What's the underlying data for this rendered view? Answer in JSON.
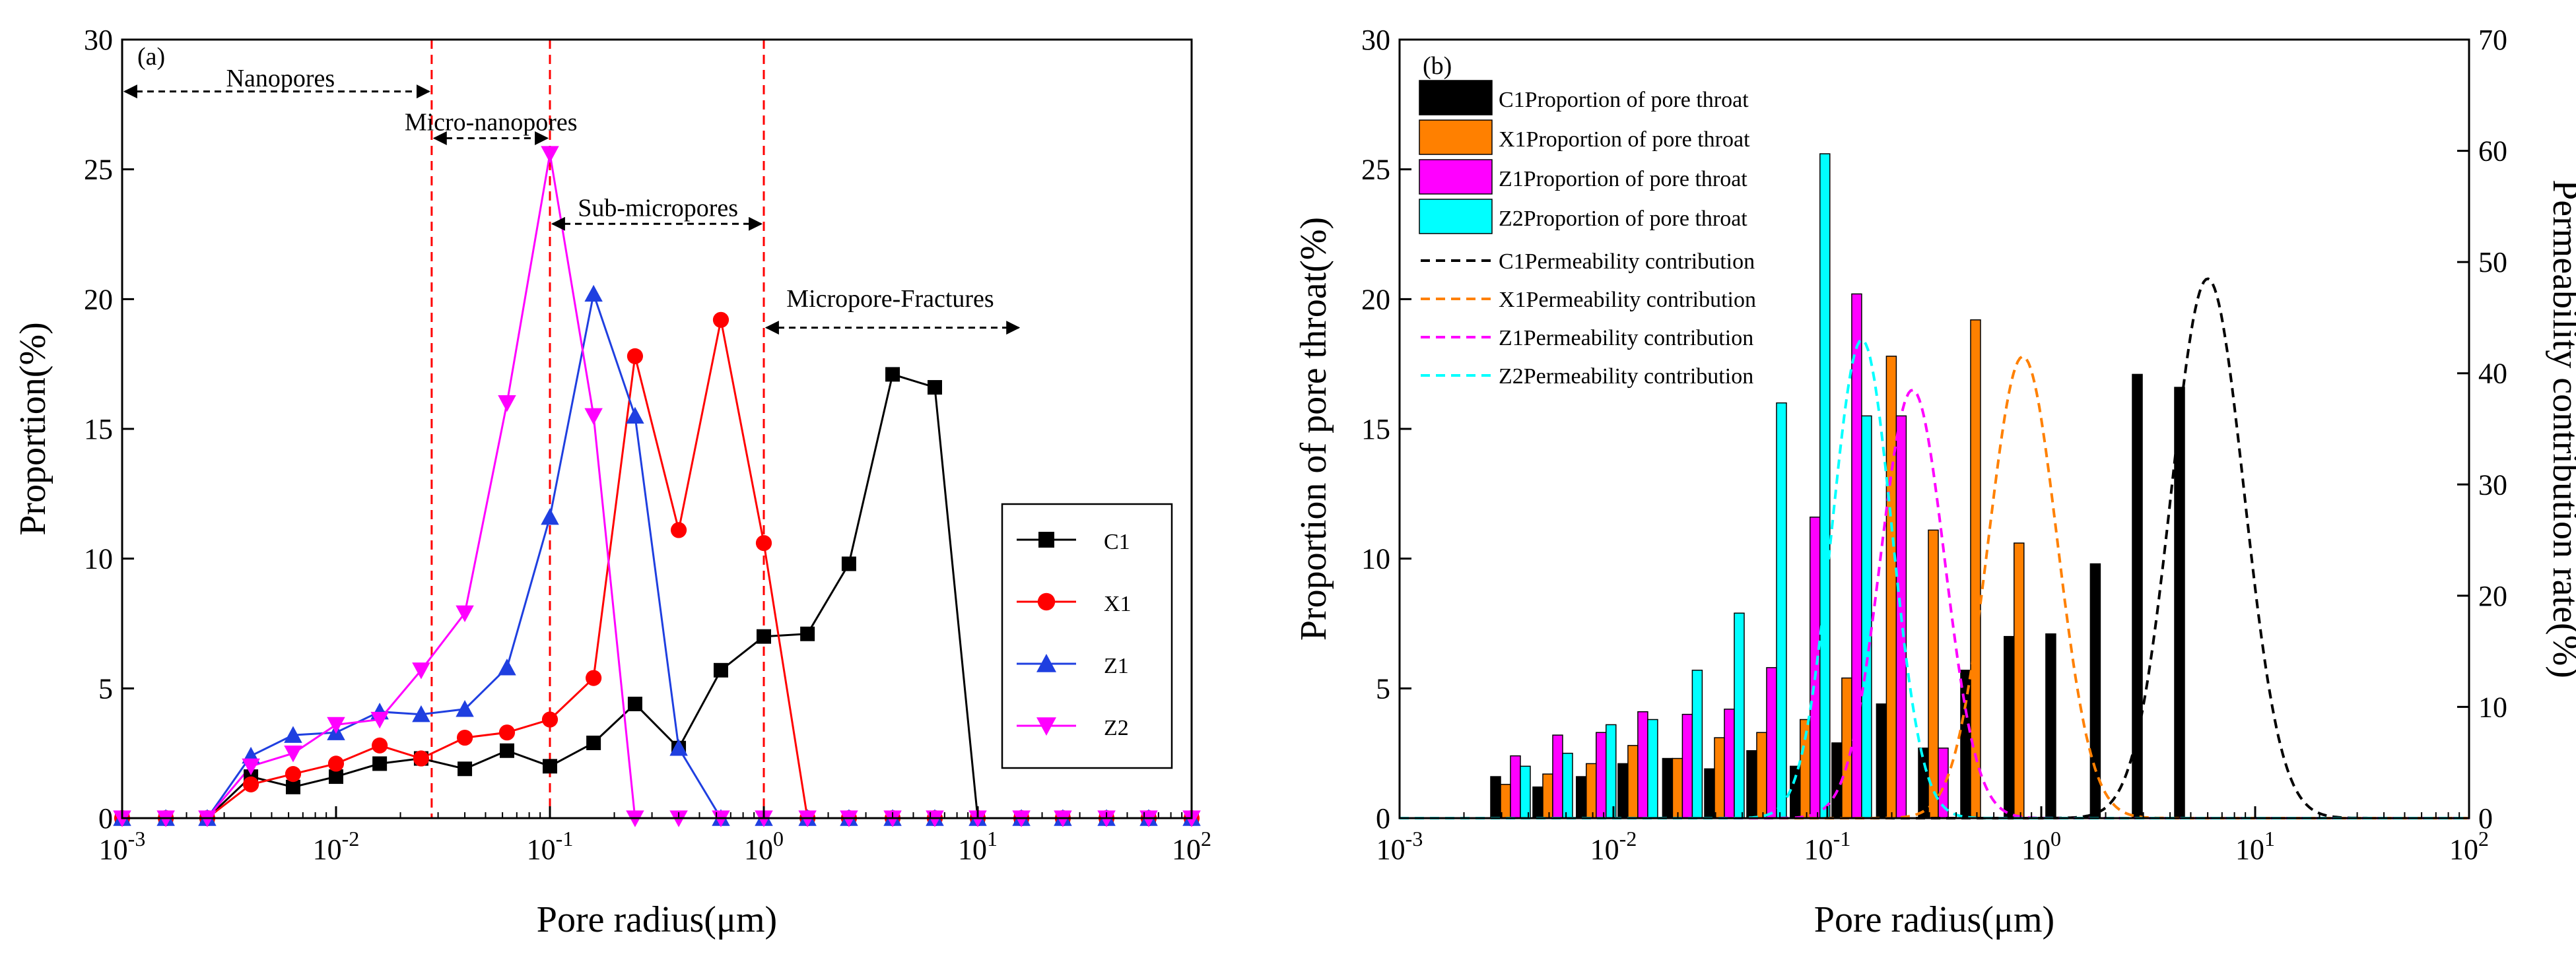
{
  "colors": {
    "C1": "#000000",
    "X1": "#ff0000",
    "Z1": "#1f3fe0",
    "Z2": "#ff00ff",
    "bar_C1": "#000000",
    "bar_X1": "#ff8000",
    "bar_Z1": "#ff00ff",
    "bar_Z2": "#00ffff",
    "divider": "#ff0000",
    "arrow": "#000000"
  },
  "chart_data": [
    {
      "type": "line",
      "panel_label": "(a)",
      "xlabel": "Pore radius(μm)",
      "ylabel": "Proportion(%)",
      "xscale": "log",
      "xlim": [
        0.001,
        100
      ],
      "ylim": [
        0,
        30
      ],
      "yticks": [
        0,
        5,
        10,
        15,
        20,
        25,
        30
      ],
      "xticks": [
        {
          "value": 0.001,
          "base": "10",
          "exp": "-3"
        },
        {
          "value": 0.01,
          "base": "10",
          "exp": "-2"
        },
        {
          "value": 0.1,
          "base": "10",
          "exp": "-1"
        },
        {
          "value": 1,
          "base": "10",
          "exp": "0"
        },
        {
          "value": 10,
          "base": "10",
          "exp": "1"
        },
        {
          "value": 100,
          "base": "10",
          "exp": "2"
        }
      ],
      "legend_position": "right",
      "x": [
        0.001,
        0.0016,
        0.0025,
        0.004,
        0.0063,
        0.01,
        0.016,
        0.025,
        0.04,
        0.063,
        0.1,
        0.16,
        0.25,
        0.4,
        0.63,
        1.0,
        1.6,
        2.5,
        4.0,
        6.3,
        10,
        16,
        25,
        40,
        63,
        100
      ],
      "series": [
        {
          "name": "C1",
          "color_key": "C1",
          "marker": "square",
          "values": [
            0,
            0,
            0,
            1.6,
            1.2,
            1.6,
            2.1,
            2.3,
            1.9,
            2.6,
            2.0,
            2.9,
            4.4,
            2.7,
            5.7,
            7.0,
            7.1,
            9.8,
            17.1,
            16.6,
            0,
            0,
            0,
            0,
            0,
            0
          ]
        },
        {
          "name": "X1",
          "color_key": "X1",
          "marker": "circle",
          "values": [
            0,
            0,
            0,
            1.3,
            1.7,
            2.1,
            2.8,
            2.3,
            3.1,
            3.3,
            3.8,
            5.4,
            17.8,
            11.1,
            19.2,
            10.6,
            0,
            0,
            0,
            0,
            0,
            0,
            0,
            0,
            0,
            0
          ]
        },
        {
          "name": "Z1",
          "color_key": "Z1",
          "marker": "triangle-up",
          "values": [
            0,
            0,
            0,
            2.4,
            3.2,
            3.3,
            4.1,
            4.0,
            4.2,
            5.8,
            11.6,
            20.2,
            15.5,
            2.7,
            0,
            0,
            0,
            0,
            0,
            0,
            0,
            0,
            0,
            0,
            0,
            0
          ]
        },
        {
          "name": "Z2",
          "color_key": "Z2",
          "marker": "triangle-down",
          "values": [
            0,
            0,
            0,
            2.0,
            2.5,
            3.6,
            3.8,
            5.7,
            7.9,
            16.0,
            25.6,
            15.5,
            0,
            0,
            0,
            0,
            0,
            0,
            0,
            0,
            0,
            0,
            0,
            0,
            0,
            0
          ]
        }
      ],
      "divider_lines_x": [
        0.028,
        0.1,
        1.0
      ],
      "annotations": [
        {
          "text": "Nanopores",
          "label_x": 0.0055,
          "label_y": 28.2,
          "arrow_x1": 0.001,
          "arrow_x2": 0.028,
          "arrow_y": 28.0
        },
        {
          "text": "Micro-nanopores",
          "label_x": 0.053,
          "label_y": 26.5,
          "arrow_x1": 0.028,
          "arrow_x2": 0.1,
          "arrow_y": 26.2
        },
        {
          "text": "Sub-micropores",
          "label_x": 0.32,
          "label_y": 23.2,
          "arrow_x1": 0.1,
          "arrow_x2": 1.0,
          "arrow_y": 22.9
        },
        {
          "text": "Micropore-Fractures",
          "label_x": 3.9,
          "label_y": 19.7,
          "arrow_x1": 1.0,
          "arrow_x2": 16.0,
          "arrow_y": 18.9
        }
      ]
    },
    {
      "type": "bar",
      "panel_label": "(b)",
      "xlabel": "Pore radius(μm)",
      "ylabel": "Proportion of pore throat(%)",
      "y2label": "Permeability contribution rate(%)",
      "xscale": "log",
      "xlim": [
        0.001,
        100
      ],
      "ylim": [
        0,
        30
      ],
      "y2lim": [
        0,
        70
      ],
      "yticks": [
        0,
        5,
        10,
        15,
        20,
        25,
        30
      ],
      "y2ticks": [
        0,
        10,
        20,
        30,
        40,
        50,
        60,
        70
      ],
      "xticks": [
        {
          "value": 0.001,
          "base": "10",
          "exp": "-3"
        },
        {
          "value": 0.01,
          "base": "10",
          "exp": "-2"
        },
        {
          "value": 0.1,
          "base": "10",
          "exp": "-1"
        },
        {
          "value": 1,
          "base": "10",
          "exp": "0"
        },
        {
          "value": 10,
          "base": "10",
          "exp": "1"
        },
        {
          "value": 100,
          "base": "10",
          "exp": "2"
        }
      ],
      "legend_position": "top-left",
      "bar_x": [
        0.0033,
        0.0052,
        0.0083,
        0.013,
        0.021,
        0.033,
        0.052,
        0.083,
        0.13,
        0.21,
        0.33,
        0.52,
        0.83,
        1.3,
        2.1,
        3.3,
        5.2
      ],
      "bar_series": [
        {
          "name": "C1Proportion of pore throat",
          "color_key": "bar_C1",
          "values": [
            1.6,
            1.2,
            1.6,
            2.1,
            2.3,
            1.9,
            2.6,
            2.0,
            2.9,
            4.4,
            2.7,
            5.7,
            7.0,
            7.1,
            9.8,
            17.1,
            16.6
          ]
        },
        {
          "name": "X1Proportion of pore throat",
          "color_key": "bar_X1",
          "values": [
            1.3,
            1.7,
            2.1,
            2.8,
            2.3,
            3.1,
            3.3,
            3.8,
            5.4,
            17.8,
            11.1,
            19.2,
            10.6,
            0,
            0,
            0,
            0
          ]
        },
        {
          "name": "Z1Proportion of pore throat",
          "color_key": "bar_Z1",
          "values": [
            2.4,
            3.2,
            3.3,
            4.1,
            4.0,
            4.2,
            5.8,
            11.6,
            20.2,
            15.5,
            2.7,
            0,
            0,
            0,
            0,
            0,
            0
          ]
        },
        {
          "name": "Z2Proportion of pore throat",
          "color_key": "bar_Z2",
          "values": [
            2.0,
            2.5,
            3.6,
            3.8,
            5.7,
            7.9,
            16.0,
            25.6,
            15.5,
            0,
            0,
            0,
            0,
            0,
            0,
            0,
            0
          ]
        }
      ],
      "curve_series": [
        {
          "name": "C1Permeability contribution",
          "color_key": "bar_C1",
          "peak_x": 6.0,
          "peak_y": 48.5,
          "sigma_log10": 0.17
        },
        {
          "name": "X1Permeability contribution",
          "color_key": "bar_X1",
          "peak_x": 0.82,
          "peak_y": 41.5,
          "sigma_log10": 0.16
        },
        {
          "name": "Z1Permeability contribution",
          "color_key": "bar_Z1",
          "peak_x": 0.25,
          "peak_y": 38.5,
          "sigma_log10": 0.15
        },
        {
          "name": "Z2Permeability contribution",
          "color_key": "bar_Z2",
          "peak_x": 0.145,
          "peak_y": 43.0,
          "sigma_log10": 0.14
        }
      ]
    }
  ]
}
